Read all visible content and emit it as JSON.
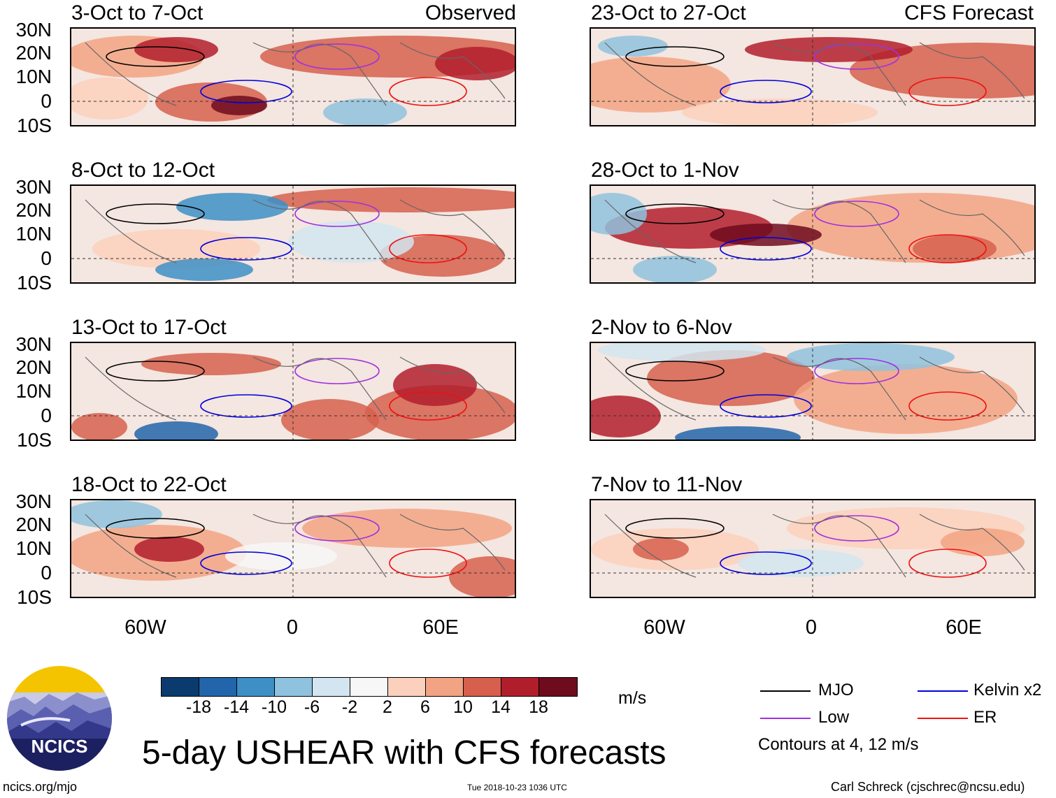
{
  "figure_title": "5-day USHEAR with CFS forecasts",
  "observed_label": "Observed",
  "forecast_label": "CFS Forecast",
  "latitude_ticks": [
    "30N",
    "20N",
    "10N",
    "0",
    "10S"
  ],
  "longitude_ticks": [
    "60W",
    "0",
    "60E"
  ],
  "panels": {
    "observed": [
      "3-Oct to 7-Oct",
      "8-Oct to 12-Oct",
      "13-Oct to 17-Oct",
      "18-Oct to 22-Oct"
    ],
    "forecast": [
      "23-Oct to 27-Oct",
      "28-Oct to 1-Nov",
      "2-Nov to 6-Nov",
      "7-Nov to 11-Nov"
    ]
  },
  "colorbar": {
    "unit": "m/s",
    "tick_labels": [
      "-18",
      "-14",
      "-10",
      "-6",
      "-2",
      "2",
      "6",
      "10",
      "14",
      "18"
    ],
    "colors": [
      "#0b3a6e",
      "#2265aa",
      "#3d8fc6",
      "#8fc2de",
      "#d2e5f0",
      "#f7f7f7",
      "#fbd0bc",
      "#f2a383",
      "#d6604d",
      "#b11e2b",
      "#6e0b1d"
    ]
  },
  "legend": {
    "items": [
      {
        "label": "MJO",
        "color": "#000000"
      },
      {
        "label": "Kelvin x2",
        "color": "#0000dd"
      },
      {
        "label": "Low",
        "color": "#a030e0"
      },
      {
        "label": "ER",
        "color": "#ee1111"
      }
    ],
    "contours_note": "Contours at 4, 12 m/s"
  },
  "logo_text": "NCICS",
  "footer": {
    "website": "ncics.org/mjo",
    "timestamp": "Tue 2018-10-23 1036 UTC",
    "credit": "Carl Schreck (cjschrec@ncsu.edu)"
  }
}
